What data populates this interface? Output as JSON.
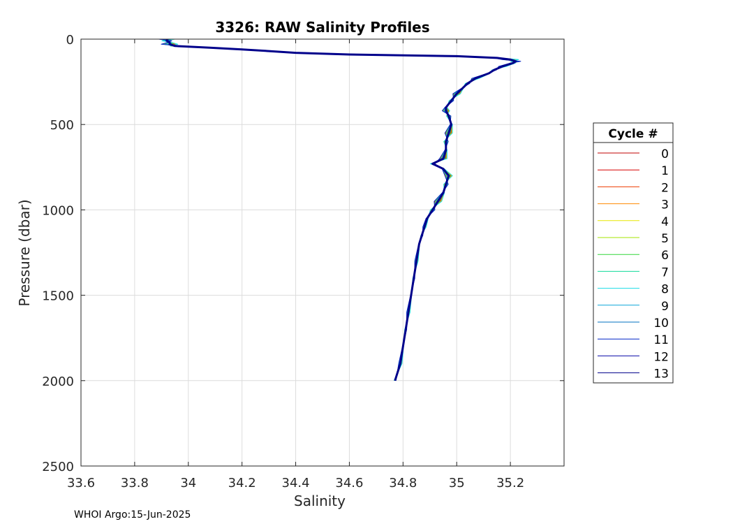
{
  "chart_data": {
    "type": "line",
    "title": "3326: RAW Salinity Profiles",
    "xlabel": "Salinity",
    "ylabel": "Pressure (dbar)",
    "xlim": [
      33.6,
      35.4
    ],
    "ylim": [
      2500,
      0
    ],
    "y_reversed": true,
    "grid": true,
    "x_ticks": [
      "33.6",
      "33.8",
      "34",
      "34.2",
      "34.4",
      "34.6",
      "34.8",
      "35",
      "35.2"
    ],
    "y_ticks": [
      "0",
      "500",
      "1000",
      "1500",
      "2000",
      "2500"
    ],
    "legend": {
      "title": "Cycle #",
      "placement": "right"
    },
    "base_profile": {
      "pressure": [
        0,
        10,
        20,
        30,
        40,
        50,
        60,
        70,
        80,
        90,
        100,
        110,
        120,
        130,
        140,
        160,
        180,
        200,
        230,
        260,
        290,
        320,
        360,
        400,
        420,
        450,
        500,
        550,
        600,
        650,
        700,
        730,
        760,
        800,
        850,
        900,
        950,
        1000,
        1050,
        1100,
        1150,
        1200,
        1300,
        1400,
        1500,
        1600,
        1700,
        1800,
        1900,
        2000
      ],
      "salinity": [
        33.92,
        33.92,
        33.93,
        33.93,
        33.95,
        34.08,
        34.2,
        34.3,
        34.4,
        34.6,
        35.0,
        35.15,
        35.2,
        35.22,
        35.21,
        35.17,
        35.14,
        35.12,
        35.07,
        35.04,
        35.02,
        35.0,
        34.98,
        34.96,
        34.96,
        34.97,
        34.98,
        34.97,
        34.96,
        34.96,
        34.95,
        34.91,
        34.95,
        34.97,
        34.96,
        34.95,
        34.93,
        34.91,
        34.89,
        34.88,
        34.87,
        34.86,
        34.85,
        34.84,
        34.83,
        34.82,
        34.81,
        34.8,
        34.79,
        34.77
      ]
    },
    "series": [
      {
        "name": "0",
        "color": "#c00000",
        "dx": 0.01,
        "max_pressure": 2000
      },
      {
        "name": "1",
        "color": "#d80000",
        "dx": -0.012,
        "max_pressure": 2000
      },
      {
        "name": "2",
        "color": "#ee3b00",
        "dx": 0.008,
        "max_pressure": 2000
      },
      {
        "name": "3",
        "color": "#ff8a00",
        "dx": -0.006,
        "max_pressure": 2000
      },
      {
        "name": "4",
        "color": "#e7e700",
        "dx": 0.012,
        "max_pressure": 2000
      },
      {
        "name": "5",
        "color": "#a6e600",
        "dx": -0.01,
        "max_pressure": 2000
      },
      {
        "name": "6",
        "color": "#34d63a",
        "dx": 0.006,
        "max_pressure": 2000
      },
      {
        "name": "7",
        "color": "#11d99a",
        "dx": -0.004,
        "max_pressure": 2000
      },
      {
        "name": "8",
        "color": "#19dbe6",
        "dx": 0.014,
        "max_pressure": 2000
      },
      {
        "name": "9",
        "color": "#0aa6d8",
        "dx": -0.008,
        "max_pressure": 2000
      },
      {
        "name": "10",
        "color": "#0070c0",
        "dx": 0.004,
        "max_pressure": 2000
      },
      {
        "name": "11",
        "color": "#0026c8",
        "dx": -0.014,
        "max_pressure": 2000
      },
      {
        "name": "12",
        "color": "#0a0aa8",
        "dx": 0.002,
        "max_pressure": 2000
      },
      {
        "name": "13",
        "color": "#00008b",
        "dx": 0.0,
        "max_pressure": 2000,
        "bold": true
      }
    ]
  },
  "footer": "WHOI Argo:15-Jun-2025"
}
